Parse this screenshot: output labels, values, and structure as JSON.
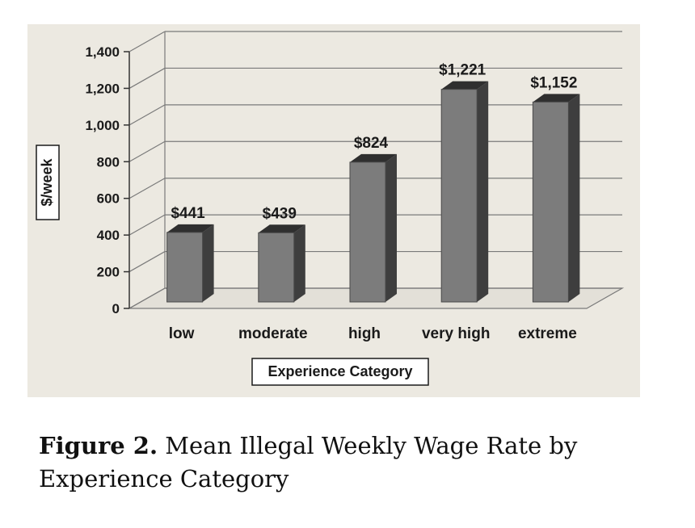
{
  "chart_data": {
    "type": "bar",
    "categories": [
      "low",
      "moderate",
      "high",
      "very high",
      "extreme"
    ],
    "values": [
      441,
      439,
      824,
      1221,
      1152
    ],
    "data_labels": [
      "$441",
      "$439",
      "$824",
      "$1,221",
      "$1,152"
    ],
    "ylabel": "$/week",
    "xlabel": "Experience Category",
    "ylim": [
      0,
      1400
    ],
    "yticks": [
      0,
      200,
      400,
      600,
      800,
      1000,
      1200,
      1400
    ],
    "ytick_labels": [
      "0",
      "200",
      "400",
      "600",
      "800",
      "1,000",
      "1,200",
      "1,400"
    ],
    "grid": true,
    "style": "3d-column"
  },
  "caption": {
    "label": "Figure 2.",
    "text": "Mean Illegal Weekly Wage Rate by Experience Category"
  },
  "colors": {
    "panel": "#ece9e1",
    "bar_front": "#7c7c7c",
    "bar_side": "#3e3e3e",
    "bar_top": "#2f2f2f",
    "grid": "#7a7a7a"
  }
}
